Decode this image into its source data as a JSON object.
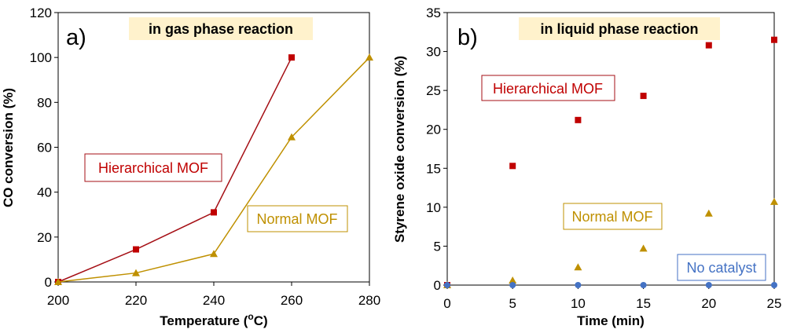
{
  "colors": {
    "hierarchical": "#C00000",
    "hierarchical_line": "#A50F15",
    "normal": "#BF9000",
    "no_catalyst": "#4472C4",
    "banner": "#FFF2CC"
  },
  "chart_data": [
    {
      "type": "line",
      "panel_label": "a)",
      "title": "in gas phase reaction",
      "xlabel_main": "Temperature (",
      "xlabel_sup": "o",
      "xlabel_end": "C)",
      "ylabel": "CO conversion (%)",
      "xlim": [
        200,
        280
      ],
      "ylim": [
        0,
        120
      ],
      "xticks": [
        200,
        220,
        240,
        260,
        280
      ],
      "yticks": [
        0,
        20,
        40,
        60,
        80,
        100,
        120
      ],
      "series": [
        {
          "name": "Hierarchical MOF",
          "key": "hierarchical",
          "marker": "square",
          "line": true,
          "x": [
            200,
            220,
            240,
            260
          ],
          "y": [
            0,
            14.5,
            31,
            100
          ]
        },
        {
          "name": "Normal MOF",
          "key": "normal",
          "marker": "triangle",
          "line": true,
          "x": [
            200,
            220,
            240,
            260,
            280
          ],
          "y": [
            0,
            4,
            12.5,
            64.5,
            100
          ]
        }
      ],
      "legend_labels": [
        "Hierarchical MOF",
        "Normal MOF"
      ]
    },
    {
      "type": "scatter",
      "panel_label": "b)",
      "title": "in liquid phase reaction",
      "xlabel": "Time (min)",
      "ylabel": "Styrene oxide conversion (%)",
      "xlim": [
        0,
        25
      ],
      "ylim": [
        0,
        35
      ],
      "xticks": [
        0,
        5,
        10,
        15,
        20,
        25
      ],
      "yticks": [
        0,
        5,
        10,
        15,
        20,
        25,
        30,
        35
      ],
      "series": [
        {
          "name": "Hierarchical MOF",
          "key": "hierarchical",
          "marker": "square",
          "line": false,
          "x": [
            0,
            5,
            10,
            15,
            20,
            25
          ],
          "y": [
            0,
            15.3,
            21.2,
            24.3,
            30.8,
            31.5
          ]
        },
        {
          "name": "Normal MOF",
          "key": "normal",
          "marker": "triangle",
          "line": false,
          "x": [
            0,
            5,
            10,
            15,
            20,
            25
          ],
          "y": [
            0,
            0.6,
            2.3,
            4.7,
            9.2,
            10.7
          ]
        },
        {
          "name": "No catalyst",
          "key": "no_catalyst",
          "marker": "circle",
          "line": false,
          "x": [
            0,
            5,
            10,
            15,
            20,
            25
          ],
          "y": [
            0,
            0,
            0,
            0,
            0,
            0
          ]
        }
      ],
      "legend_labels": [
        "Hierarchical MOF",
        "Normal MOF",
        "No catalyst"
      ]
    }
  ]
}
